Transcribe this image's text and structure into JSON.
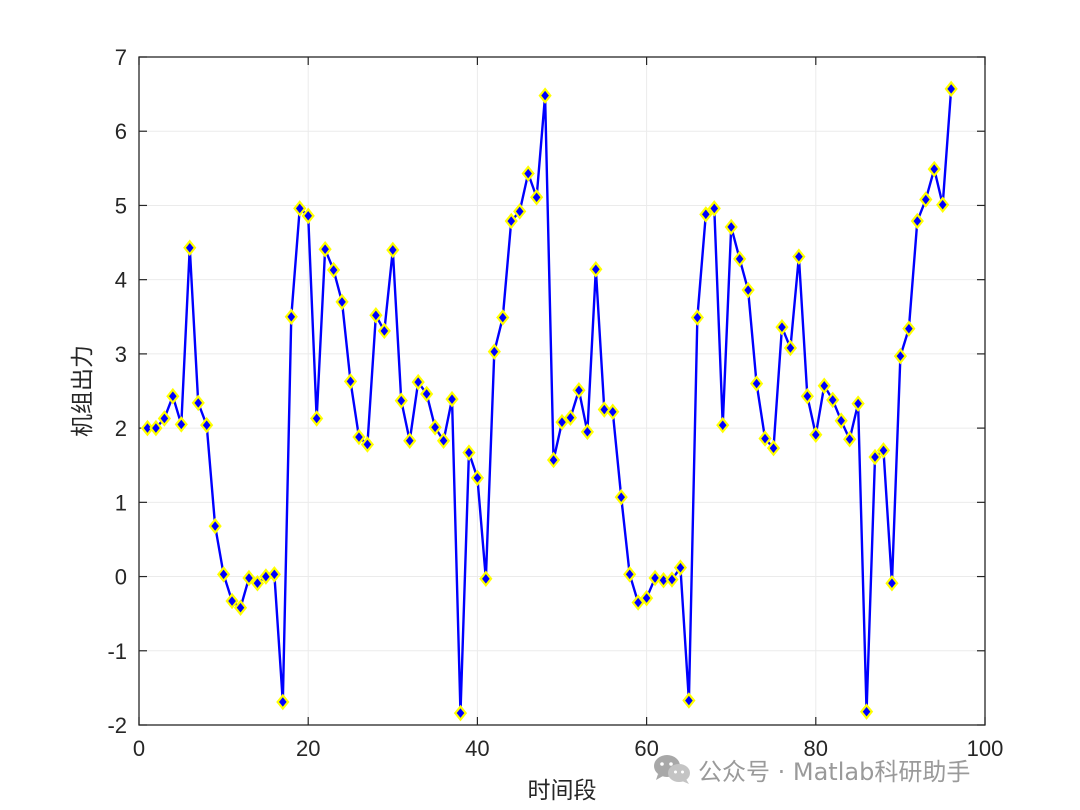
{
  "chart_data": {
    "type": "line",
    "title": "",
    "xlabel": "时间段",
    "ylabel": "机组出力",
    "xlim": [
      0,
      100
    ],
    "ylim": [
      -2,
      7
    ],
    "xticks": [
      0,
      20,
      40,
      60,
      80,
      100
    ],
    "yticks": [
      -2,
      -1,
      0,
      1,
      2,
      3,
      4,
      5,
      6,
      7
    ],
    "grid": true,
    "colors": {
      "line": "#0000ff",
      "marker_face": "#0000ff",
      "marker_edge": "#ffff00",
      "axes": "#262626",
      "grid": "#ebebeb"
    },
    "marker": "diamond",
    "series": [
      {
        "x": [
          1,
          2,
          3,
          4,
          5,
          6,
          7,
          8,
          9,
          10,
          11,
          12,
          13,
          14,
          15,
          16,
          17,
          18,
          19,
          20,
          21,
          22,
          23,
          24,
          25,
          26,
          27,
          28,
          29,
          30,
          31,
          32,
          33,
          34,
          35,
          36,
          37,
          38,
          39,
          40,
          41,
          42,
          43,
          44,
          45,
          46,
          47,
          48,
          49,
          50,
          51,
          52,
          53,
          54,
          55,
          56,
          57,
          58,
          59,
          60,
          61,
          62,
          63,
          64,
          65,
          66,
          67,
          68,
          69,
          70,
          71,
          72,
          73,
          74,
          75,
          76,
          77,
          78,
          79,
          80,
          81,
          82,
          83,
          84,
          85,
          86,
          87,
          88,
          89,
          90,
          91,
          92,
          93,
          94,
          95,
          96
        ],
        "values": [
          2.0,
          2.0,
          2.13,
          2.43,
          2.05,
          4.43,
          2.34,
          2.04,
          0.68,
          0.03,
          -0.33,
          -0.42,
          -0.02,
          -0.09,
          0.0,
          0.03,
          -1.69,
          3.5,
          4.96,
          4.86,
          2.13,
          4.41,
          4.13,
          3.7,
          2.63,
          1.88,
          1.78,
          3.52,
          3.31,
          4.4,
          2.37,
          1.83,
          2.62,
          2.46,
          2.01,
          1.83,
          2.39,
          -1.84,
          1.67,
          1.33,
          -0.03,
          3.03,
          3.49,
          4.79,
          4.92,
          5.43,
          5.11,
          6.48,
          1.57,
          2.08,
          2.14,
          2.51,
          1.95,
          4.14,
          2.25,
          2.22,
          1.07,
          0.03,
          -0.35,
          -0.29,
          -0.02,
          -0.05,
          -0.04,
          0.12,
          -1.67,
          3.49,
          4.88,
          4.96,
          2.04,
          4.71,
          4.28,
          3.86,
          2.6,
          1.86,
          1.73,
          3.36,
          3.08,
          4.31,
          2.43,
          1.91,
          2.57,
          2.38,
          2.1,
          1.85,
          2.33,
          -1.82,
          1.61,
          1.7,
          -0.09,
          2.97,
          3.34,
          4.79,
          5.08,
          5.49,
          5.01,
          6.57
        ]
      }
    ]
  },
  "watermark": {
    "text": "公众号 · Matlab科研助手",
    "icon": "wechat-icon"
  }
}
